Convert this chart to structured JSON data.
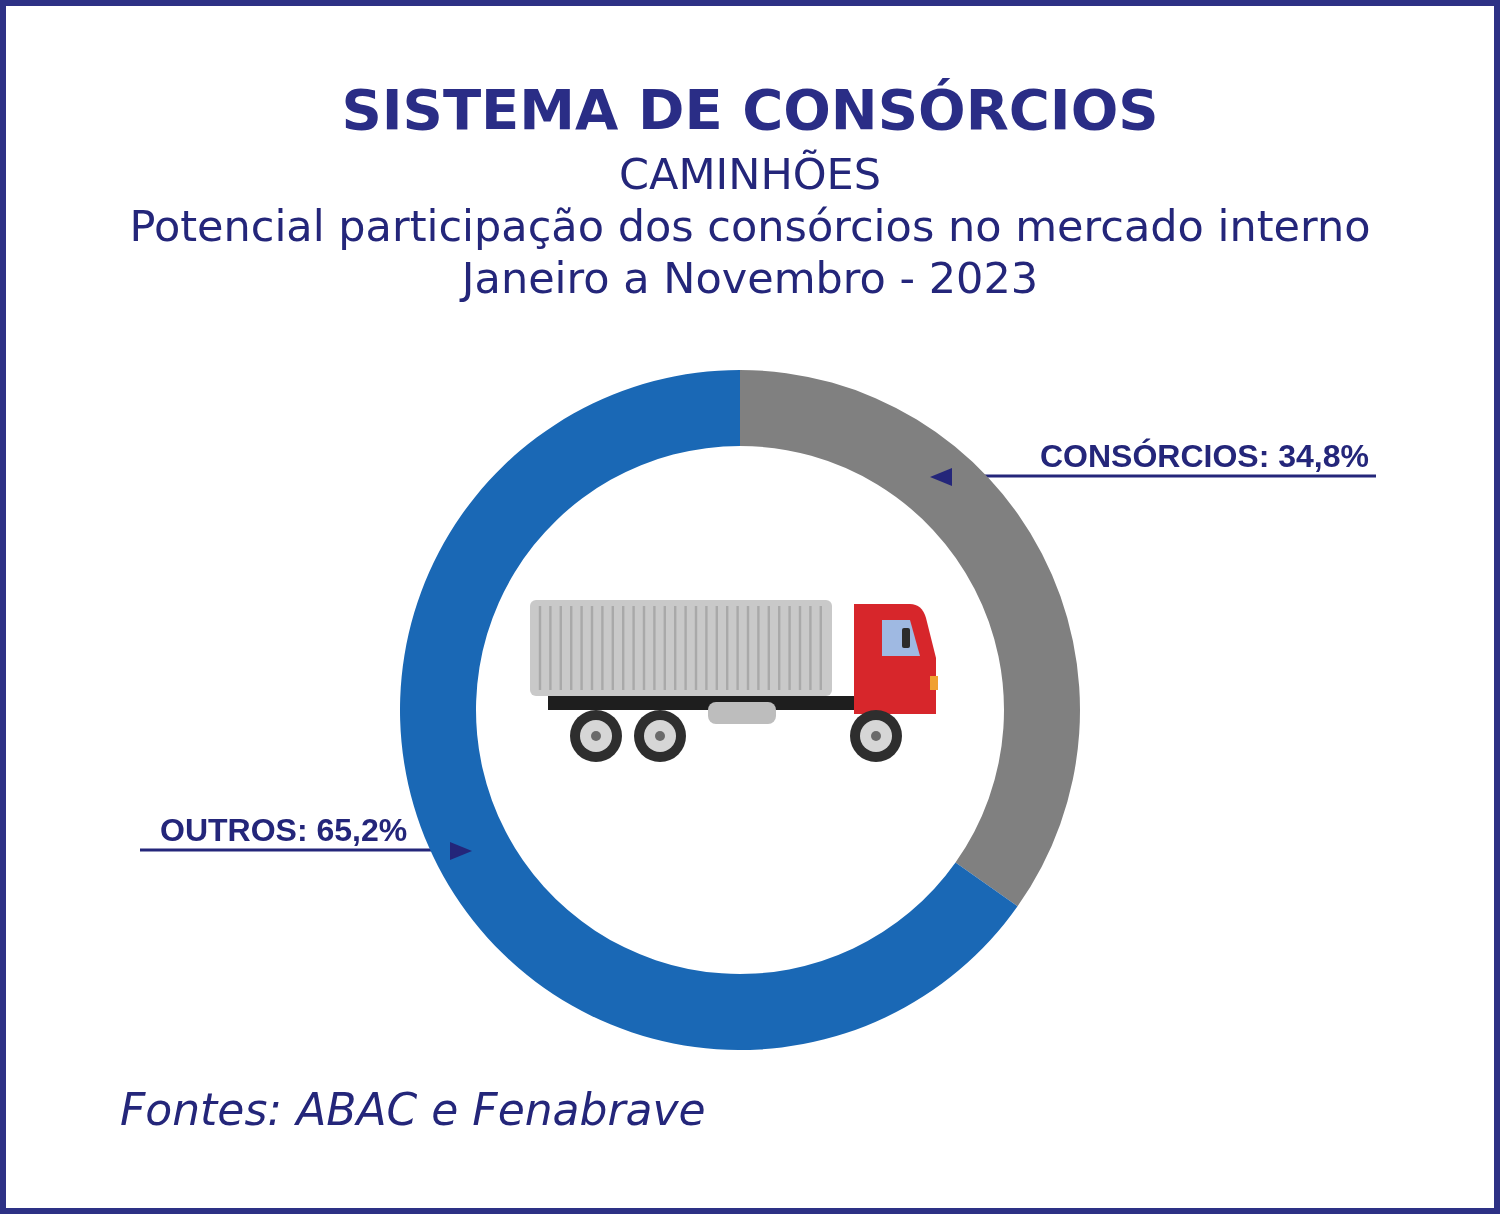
{
  "chart_data": {
    "type": "donut",
    "title": "SISTEMA DE CONSÓRCIOS",
    "subtitle": "CAMINHÕES\nPotencial participação dos consórcios no mercado interno\nJaneiro a Novembro - 2023",
    "categories": [
      "CONSÓRCIOS",
      "OUTROS"
    ],
    "values": [
      34.8,
      65.2
    ],
    "colors": [
      "#808080",
      "#1a68b5"
    ],
    "value_labels": [
      "34,8%",
      "65,2%"
    ],
    "annotations": [
      "Fontes: ABAC e Fenabrave"
    ]
  }
}
